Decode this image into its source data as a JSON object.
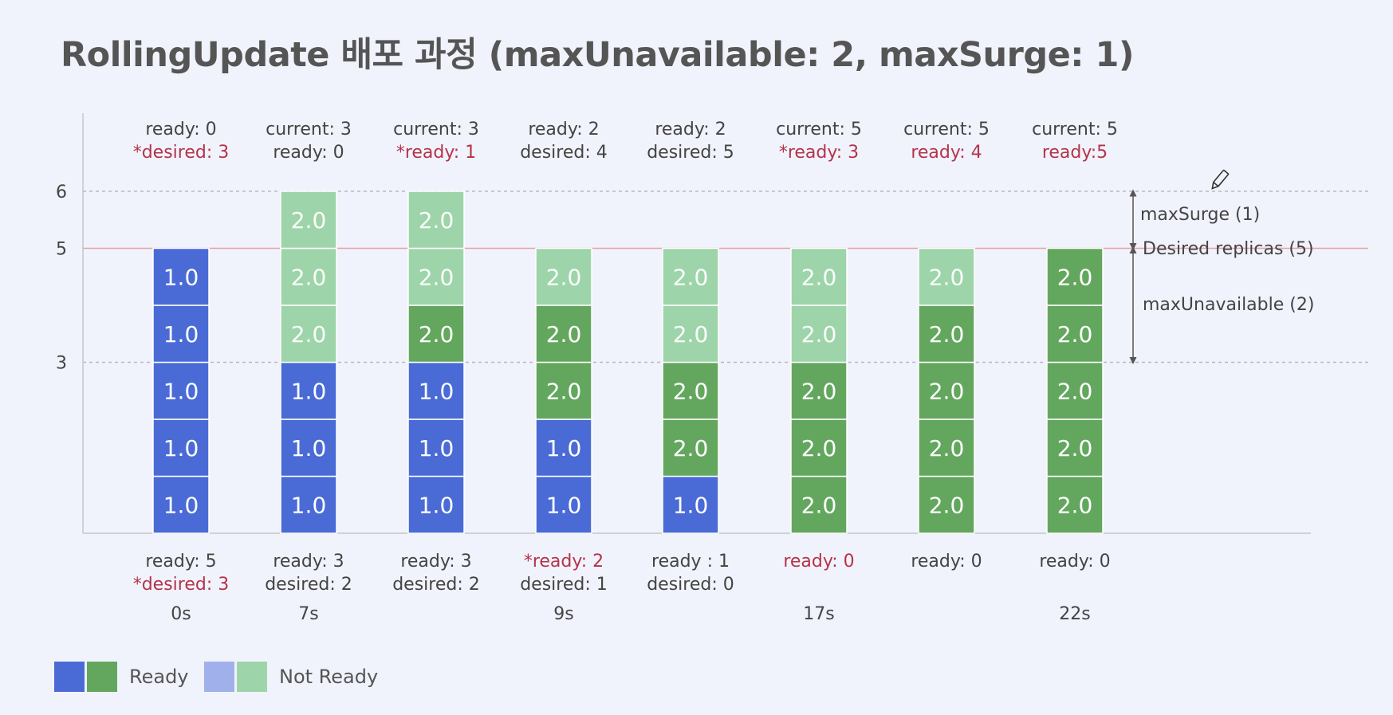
{
  "title": "RollingUpdate 배포 과정 (maxUnavailable: 2, maxSurge: 1)",
  "colors": {
    "ready_v1": "#4a6bd6",
    "ready_v2": "#63a75e",
    "notready_v1": "#9fb0ea",
    "notready_v2": "#9ed4aa",
    "highlight": "#b5334a",
    "text": "#444444",
    "desired_line": "#e8a0a8"
  },
  "y_ticks": [
    "6",
    "5",
    "3"
  ],
  "annotations": {
    "max_surge": "maxSurge (1)",
    "desired_replicas": "Desired replicas (5)",
    "max_unavailable": "maxUnavailable (2)"
  },
  "columns": [
    {
      "top": [
        {
          "text": "ready: 0",
          "hl": false
        },
        {
          "text": "*desired: 3",
          "hl": true
        }
      ],
      "bottom": [
        {
          "text": "ready: 5",
          "hl": false
        },
        {
          "text": "*desired: 3",
          "hl": true
        }
      ],
      "time": "0s",
      "pods": [
        {
          "v": "1.0",
          "ready": true
        },
        {
          "v": "1.0",
          "ready": true
        },
        {
          "v": "1.0",
          "ready": true
        },
        {
          "v": "1.0",
          "ready": true
        },
        {
          "v": "1.0",
          "ready": true
        }
      ]
    },
    {
      "top": [
        {
          "text": "current: 3",
          "hl": false
        },
        {
          "text": "ready: 0",
          "hl": false
        }
      ],
      "bottom": [
        {
          "text": "ready: 3",
          "hl": false
        },
        {
          "text": "desired: 2",
          "hl": false
        }
      ],
      "time": "7s",
      "pods": [
        {
          "v": "1.0",
          "ready": true
        },
        {
          "v": "1.0",
          "ready": true
        },
        {
          "v": "1.0",
          "ready": true
        },
        {
          "v": "2.0",
          "ready": false
        },
        {
          "v": "2.0",
          "ready": false
        },
        {
          "v": "2.0",
          "ready": false
        }
      ]
    },
    {
      "top": [
        {
          "text": "current: 3",
          "hl": false
        },
        {
          "text": "*ready: 1",
          "hl": true
        }
      ],
      "bottom": [
        {
          "text": "ready: 3",
          "hl": false
        },
        {
          "text": "desired: 2",
          "hl": false
        }
      ],
      "time": "",
      "pods": [
        {
          "v": "1.0",
          "ready": true
        },
        {
          "v": "1.0",
          "ready": true
        },
        {
          "v": "1.0",
          "ready": true
        },
        {
          "v": "2.0",
          "ready": true
        },
        {
          "v": "2.0",
          "ready": false
        },
        {
          "v": "2.0",
          "ready": false
        }
      ]
    },
    {
      "top": [
        {
          "text": "ready: 2",
          "hl": false
        },
        {
          "text": "desired: 4",
          "hl": false
        }
      ],
      "bottom": [
        {
          "text": "*ready: 2",
          "hl": true
        },
        {
          "text": "desired: 1",
          "hl": false
        }
      ],
      "time": "9s",
      "pods": [
        {
          "v": "1.0",
          "ready": true
        },
        {
          "v": "1.0",
          "ready": true
        },
        {
          "v": "2.0",
          "ready": true
        },
        {
          "v": "2.0",
          "ready": true
        },
        {
          "v": "2.0",
          "ready": false
        }
      ]
    },
    {
      "top": [
        {
          "text": "ready: 2",
          "hl": false
        },
        {
          "text": "desired: 5",
          "hl": false
        }
      ],
      "bottom": [
        {
          "text": "ready : 1",
          "hl": false
        },
        {
          "text": "desired: 0",
          "hl": false
        }
      ],
      "time": "",
      "pods": [
        {
          "v": "1.0",
          "ready": true
        },
        {
          "v": "2.0",
          "ready": true
        },
        {
          "v": "2.0",
          "ready": true
        },
        {
          "v": "2.0",
          "ready": false
        },
        {
          "v": "2.0",
          "ready": false
        }
      ]
    },
    {
      "top": [
        {
          "text": "current: 5",
          "hl": false
        },
        {
          "text": "*ready: 3",
          "hl": true
        }
      ],
      "bottom": [
        {
          "text": "ready: 0",
          "hl": true
        }
      ],
      "time": "17s",
      "pods": [
        {
          "v": "2.0",
          "ready": true
        },
        {
          "v": "2.0",
          "ready": true
        },
        {
          "v": "2.0",
          "ready": true
        },
        {
          "v": "2.0",
          "ready": false
        },
        {
          "v": "2.0",
          "ready": false
        }
      ]
    },
    {
      "top": [
        {
          "text": "current: 5",
          "hl": false
        },
        {
          "text": "ready: 4",
          "hl": true
        }
      ],
      "bottom": [
        {
          "text": "ready: 0",
          "hl": false
        }
      ],
      "time": "",
      "pods": [
        {
          "v": "2.0",
          "ready": true
        },
        {
          "v": "2.0",
          "ready": true
        },
        {
          "v": "2.0",
          "ready": true
        },
        {
          "v": "2.0",
          "ready": true
        },
        {
          "v": "2.0",
          "ready": false
        }
      ]
    },
    {
      "top": [
        {
          "text": "current: 5",
          "hl": false
        },
        {
          "text": "ready:5",
          "hl": true
        }
      ],
      "bottom": [
        {
          "text": "ready: 0",
          "hl": false
        }
      ],
      "time": "22s",
      "pods": [
        {
          "v": "2.0",
          "ready": true
        },
        {
          "v": "2.0",
          "ready": true
        },
        {
          "v": "2.0",
          "ready": true
        },
        {
          "v": "2.0",
          "ready": true
        },
        {
          "v": "2.0",
          "ready": true
        }
      ]
    }
  ],
  "legend": {
    "ready_label": "Ready",
    "not_ready_label": "Not Ready"
  }
}
